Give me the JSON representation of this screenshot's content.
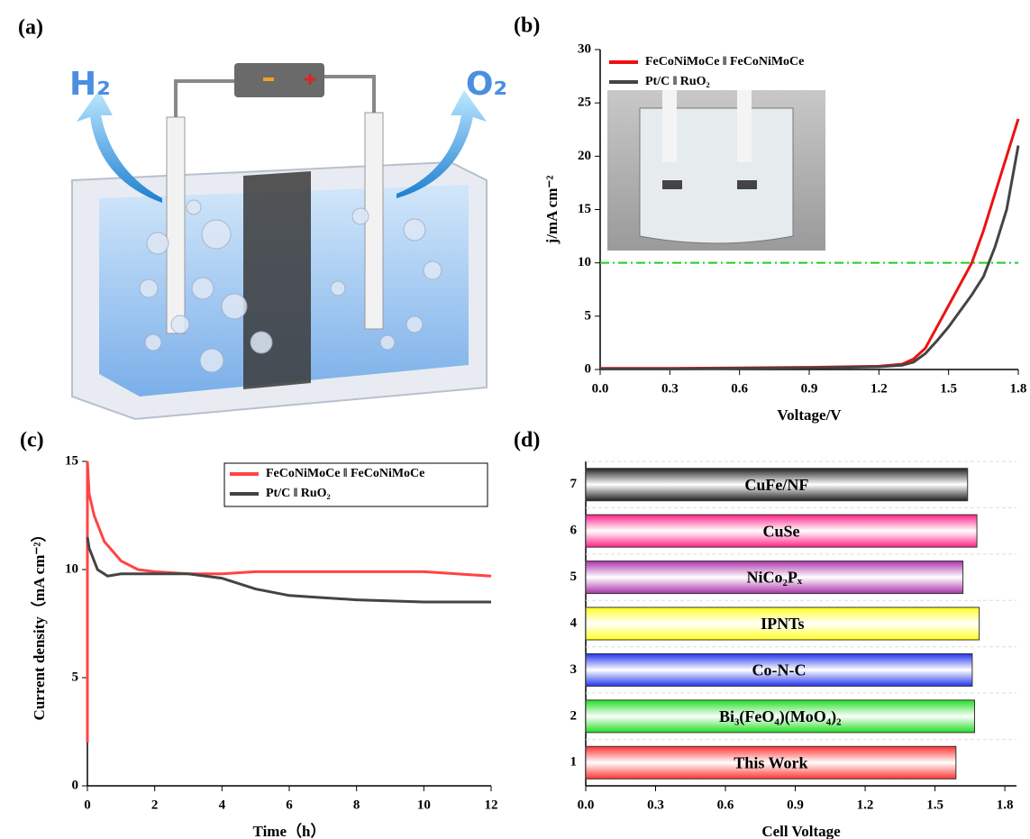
{
  "illustration": {
    "panel_label": "(a)",
    "labels": [
      "H₂",
      "O₂"
    ]
  },
  "chart_data": [
    {
      "type": "line",
      "panel_label": "(b)",
      "xlabel": "Voltage/V",
      "ylabel": "j/mA cm⁻²",
      "xlim": [
        0,
        1.8
      ],
      "ylim": [
        0,
        30
      ],
      "xticks": [
        {
          "value": 0,
          "label": "0.0"
        },
        0.3,
        0.6,
        0.9,
        1.2,
        1.5,
        1.8
      ],
      "yticks": [
        0,
        5,
        10,
        15,
        20,
        25,
        30
      ],
      "legend": "upper left",
      "legend_frame": false,
      "reference_line": {
        "value": 10,
        "color": "#22cc22"
      },
      "series": [
        {
          "name": "FeCoNiMoCe ‖ FeCoNiMoCe",
          "color": "#ee1111",
          "x": [
            0,
            0.3,
            0.6,
            0.9,
            1.2,
            1.3,
            1.35,
            1.4,
            1.45,
            1.5,
            1.55,
            1.6,
            1.65,
            1.7,
            1.75,
            1.8
          ],
          "values": [
            0.1,
            0.1,
            0.15,
            0.2,
            0.3,
            0.5,
            1,
            2,
            4,
            6,
            8,
            10,
            13,
            16.5,
            20,
            23.5
          ]
        },
        {
          "name": "Pt/C ‖ RuO₂",
          "color": "#444444",
          "x": [
            0,
            0.3,
            0.6,
            0.9,
            1.2,
            1.3,
            1.35,
            1.4,
            1.45,
            1.5,
            1.55,
            1.6,
            1.65,
            1.7,
            1.75,
            1.8
          ],
          "values": [
            0.05,
            0.05,
            0.1,
            0.15,
            0.25,
            0.4,
            0.7,
            1.5,
            2.7,
            4,
            5.5,
            7,
            8.7,
            11.5,
            15,
            21
          ]
        }
      ]
    },
    {
      "type": "line",
      "panel_label": "(c)",
      "xlabel": "Time（h）",
      "ylabel": "Current density（mA cm⁻²）",
      "xlim": [
        0,
        12
      ],
      "ylim": [
        0,
        15
      ],
      "xticks": [
        0,
        2,
        4,
        6,
        8,
        10,
        12
      ],
      "yticks": [
        0,
        5,
        10,
        15
      ],
      "legend": "upper right",
      "legend_frame": true,
      "series": [
        {
          "name": "FeCoNiMoCe ‖ FeCoNiMoCe",
          "color": "#ff4444",
          "x": [
            0,
            0,
            0.05,
            0.2,
            0.5,
            1,
            1.5,
            2,
            3,
            4,
            5,
            6,
            8,
            10,
            12
          ],
          "values": [
            2,
            15,
            13.5,
            12.5,
            11.3,
            10.4,
            10,
            9.9,
            9.8,
            9.8,
            9.9,
            9.9,
            9.9,
            9.9,
            9.7
          ]
        },
        {
          "name": "Pt/C ‖ RuO₂",
          "color": "#444444",
          "x": [
            0,
            0.05,
            0.3,
            0.6,
            1,
            2,
            3,
            4,
            5,
            6,
            7,
            8,
            10,
            12
          ],
          "values": [
            11.5,
            11,
            10,
            9.7,
            9.8,
            9.8,
            9.8,
            9.6,
            9.1,
            8.8,
            8.7,
            8.6,
            8.5,
            8.5
          ]
        }
      ]
    },
    {
      "type": "hbar",
      "panel_label": "(d)",
      "xlabel": "Cell Voltage",
      "xlim": [
        0,
        1.85
      ],
      "xticks": [
        {
          "value": 0,
          "label": "0.0"
        },
        0.3,
        0.6,
        0.9,
        1.2,
        1.5,
        1.8
      ],
      "grid": true,
      "categories": [
        "1",
        "2",
        "3",
        "4",
        "5",
        "6",
        "7"
      ],
      "bar_labels": [
        "This Work",
        "Bi₃(FeO₄)(MoO₄)₂",
        "Co-N-C",
        "IPNTs",
        "NiCo₂Pₓ",
        "CuSe",
        "CuFe/NF"
      ],
      "colors": [
        "#ff3333",
        "#22dd22",
        "#2233ee",
        "#ffff22",
        "#aa33aa",
        "#ff2288",
        "#222222"
      ],
      "values": [
        1.59,
        1.67,
        1.66,
        1.69,
        1.62,
        1.68,
        1.64
      ]
    }
  ]
}
